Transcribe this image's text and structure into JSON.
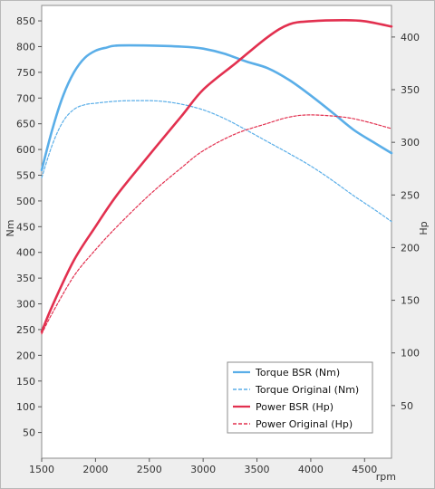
{
  "chart_data": {
    "type": "line",
    "title": "",
    "xlabel": "rpm",
    "ylabel_left": "Nm",
    "ylabel_right": "Hp",
    "xlim": [
      1500,
      4750
    ],
    "ylim_left": [
      0,
      880
    ],
    "ylim_right": [
      0,
      430
    ],
    "xticks": [
      1500,
      2000,
      2500,
      3000,
      3500,
      4000,
      4500
    ],
    "yticks_left": [
      50,
      100,
      150,
      200,
      250,
      300,
      350,
      400,
      450,
      500,
      550,
      600,
      650,
      700,
      750,
      800,
      850
    ],
    "yticks_right": [
      50,
      100,
      150,
      200,
      250,
      300,
      350,
      400
    ],
    "grid": false,
    "legend_position": "bottom-right",
    "series": [
      {
        "name": "Torque BSR (Nm)",
        "axis": "left",
        "style": "solid",
        "color": "#5aaee8",
        "x": [
          1500,
          1600,
          1700,
          1800,
          1900,
          2000,
          2100,
          2200,
          2500,
          2800,
          3000,
          3200,
          3400,
          3600,
          3800,
          4000,
          4200,
          4400,
          4600,
          4750
        ],
        "y": [
          560,
          640,
          705,
          750,
          778,
          792,
          798,
          802,
          802,
          800,
          796,
          786,
          771,
          758,
          735,
          705,
          672,
          638,
          612,
          593
        ]
      },
      {
        "name": "Torque Original (Nm)",
        "axis": "left",
        "style": "dashed",
        "color": "#5aaee8",
        "x": [
          1500,
          1600,
          1700,
          1800,
          1900,
          2000,
          2200,
          2400,
          2600,
          2800,
          3000,
          3200,
          3400,
          3600,
          3800,
          4000,
          4200,
          4400,
          4600,
          4750
        ],
        "y": [
          545,
          610,
          655,
          678,
          687,
          690,
          694,
          695,
          694,
          688,
          677,
          660,
          638,
          615,
          592,
          568,
          540,
          510,
          482,
          460
        ]
      },
      {
        "name": "Power BSR (Hp)",
        "axis": "right",
        "style": "solid",
        "color": "#e2304f",
        "x": [
          1500,
          1600,
          1800,
          2000,
          2200,
          2500,
          2800,
          3000,
          3300,
          3600,
          3800,
          4000,
          4300,
          4500,
          4750
        ],
        "y": [
          120,
          145,
          188,
          220,
          250,
          288,
          325,
          350,
          375,
          400,
          412,
          415,
          416,
          415,
          410
        ]
      },
      {
        "name": "Power Original (Hp)",
        "axis": "right",
        "style": "dashed",
        "color": "#e2304f",
        "x": [
          1500,
          1600,
          1800,
          2000,
          2200,
          2500,
          2800,
          3000,
          3300,
          3600,
          3800,
          4000,
          4300,
          4500,
          4750
        ],
        "y": [
          118,
          138,
          173,
          198,
          220,
          250,
          276,
          292,
          308,
          318,
          324,
          326,
          324,
          320,
          313
        ]
      }
    ]
  }
}
